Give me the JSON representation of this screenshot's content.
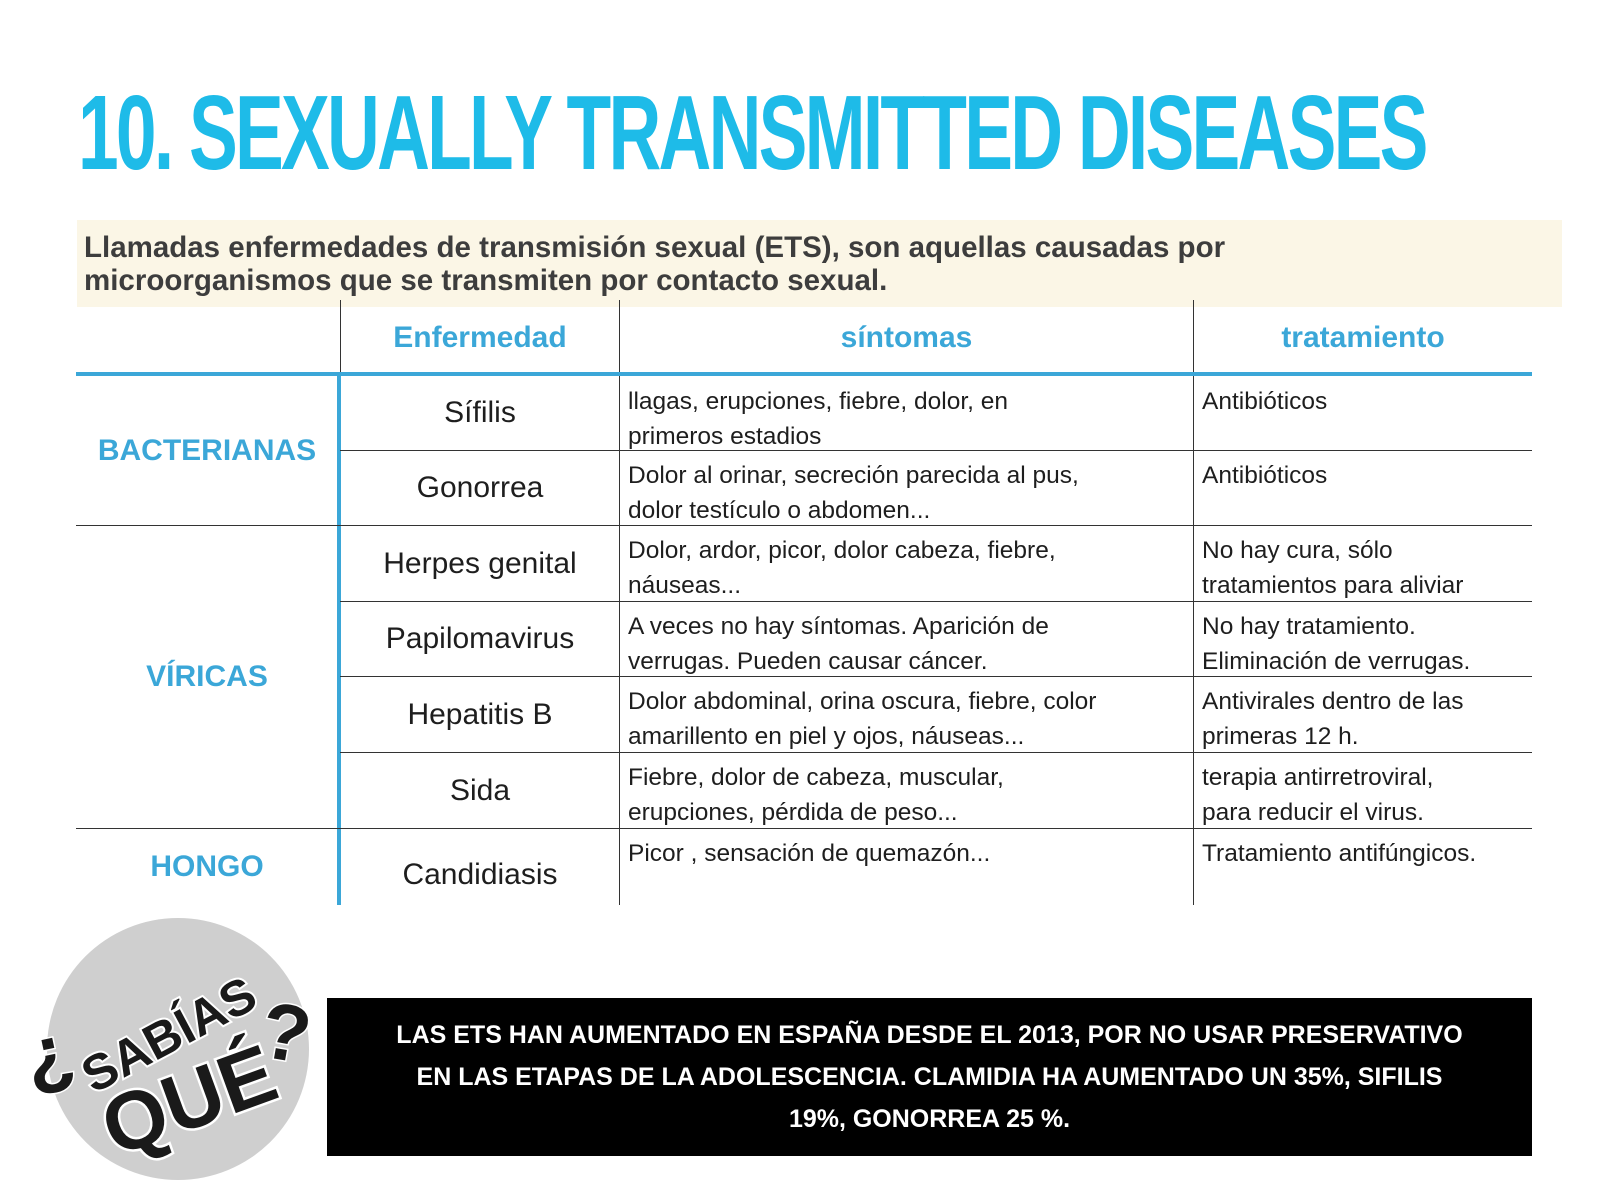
{
  "title": "10. SEXUALLY TRANSMITTED DISEASES",
  "intro": {
    "line1": "Llamadas enfermedades de transmisión sexual (ETS), son aquellas causadas por",
    "line2": "microorganismos que se transmiten por contacto sexual."
  },
  "table": {
    "headers": {
      "disease": "Enfermedad",
      "symptoms": "síntomas",
      "treatment": "tratamiento"
    },
    "categories": {
      "bacterial": "BACTERIANAS",
      "viral": "VÍRICAS",
      "fungal": "HONGO"
    },
    "rows": [
      {
        "name": "Sífilis",
        "symptoms": [
          "llagas, erupciones, fiebre, dolor,  en",
          "primeros estadios"
        ],
        "treatment": [
          "Antibióticos"
        ]
      },
      {
        "name": "Gonorrea",
        "symptoms": [
          "Dolor al orinar, secreción parecida al pus,",
          "dolor testículo o abdomen..."
        ],
        "treatment": [
          "Antibióticos"
        ]
      },
      {
        "name": "Herpes genital",
        "symptoms": [
          "Dolor, ardor, picor, dolor cabeza, fiebre,",
          "náuseas..."
        ],
        "treatment": [
          "No hay cura, sólo",
          "tratamientos para aliviar"
        ]
      },
      {
        "name": "Papilomavirus",
        "symptoms": [
          "A veces no hay síntomas. Aparición de",
          "verrugas. Pueden causar cáncer."
        ],
        "treatment": [
          "No hay tratamiento.",
          "Eliminación de verrugas."
        ]
      },
      {
        "name": "Hepatitis B",
        "symptoms": [
          "Dolor abdominal, orina oscura, fiebre, color",
          "amarillento en piel y ojos, náuseas..."
        ],
        "treatment": [
          "Antivirales dentro de las",
          "primeras 12 h."
        ]
      },
      {
        "name": "Sida",
        "symptoms": [
          "Fiebre, dolor de cabeza, muscular,",
          "erupciones, pérdida de peso..."
        ],
        "treatment": [
          "terapia antirretroviral,",
          "para reducir el virus."
        ]
      },
      {
        "name": "Candidiasis",
        "symptoms": [
          "Picor , sensación de quemazón..."
        ],
        "treatment": [
          "Tratamiento antifúngicos."
        ]
      }
    ]
  },
  "badge": {
    "question_open": "¿",
    "word1": "SABÍAS",
    "word2": "QUÉ",
    "question_close": "?"
  },
  "banner": {
    "line1": "LAS ETS HAN AUMENTADO EN ESPAÑA DESDE EL 2013, POR  NO USAR  PRESERVATIVO",
    "line2": "EN LAS ETAPAS DE LA ADOLESCENCIA. CLAMIDIA HA AUMENTADO UN 35%, SIFILIS",
    "line3": "19%, GONORREA 25 %."
  },
  "colors": {
    "title": "#1ebbe8",
    "accent": "#3ba7d8",
    "intro_bg": "#fbf6e6",
    "badge_bg": "#cfcfcf",
    "banner_bg": "#000000"
  }
}
